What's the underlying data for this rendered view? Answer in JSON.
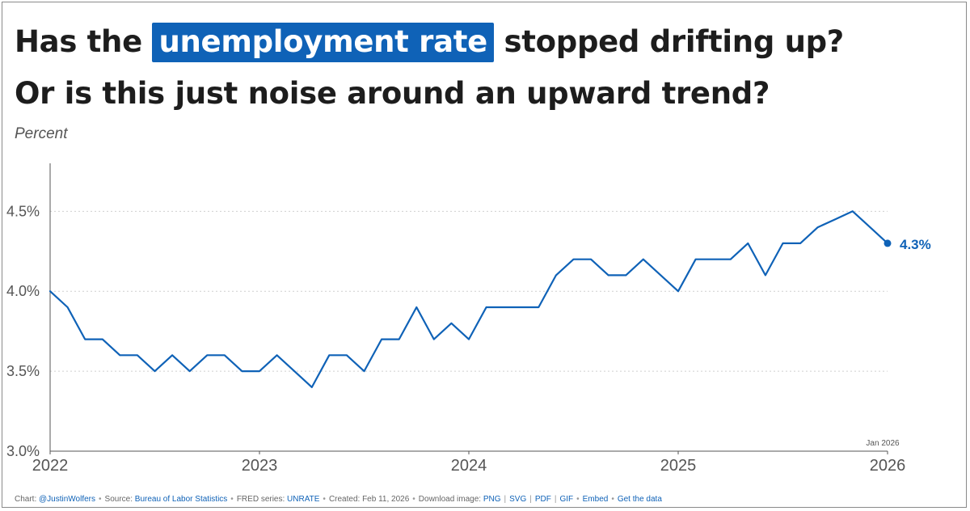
{
  "title": {
    "line1_before": "Has the ",
    "line1_highlight": "unemployment rate",
    "line1_after": " stopped drifting up?",
    "line2": "Or is this just noise around an upward trend?"
  },
  "subtitle": "Percent",
  "chart_data": {
    "type": "line",
    "title": "Has the unemployment rate stopped drifting up? Or is this just noise around an upward trend?",
    "ylabel": "Percent",
    "xlabel": "",
    "xlim": [
      "2022-01",
      "2026-01"
    ],
    "ylim": [
      3.0,
      4.8
    ],
    "y_ticks": [
      3.0,
      3.5,
      4.0,
      4.5
    ],
    "y_tick_labels": [
      "3.0%",
      "3.5%",
      "4.0%",
      "4.5%"
    ],
    "x_ticks": [
      "2022-01",
      "2023-01",
      "2024-01",
      "2025-01",
      "2026-01"
    ],
    "x_tick_labels": [
      "2022",
      "2023",
      "2024",
      "2025",
      "2026"
    ],
    "grid": "horizontal-dotted",
    "series_color": "#0f62b7",
    "end_label": "4.3%",
    "end_annotation": "Jan 2026",
    "series": [
      {
        "name": "UNRATE",
        "x": [
          "2022-01",
          "2022-02",
          "2022-03",
          "2022-04",
          "2022-05",
          "2022-06",
          "2022-07",
          "2022-08",
          "2022-09",
          "2022-10",
          "2022-11",
          "2022-12",
          "2023-01",
          "2023-02",
          "2023-03",
          "2023-04",
          "2023-05",
          "2023-06",
          "2023-07",
          "2023-08",
          "2023-09",
          "2023-10",
          "2023-11",
          "2023-12",
          "2024-01",
          "2024-02",
          "2024-03",
          "2024-04",
          "2024-05",
          "2024-06",
          "2024-07",
          "2024-08",
          "2024-09",
          "2024-10",
          "2024-11",
          "2024-12",
          "2025-01",
          "2025-02",
          "2025-03",
          "2025-04",
          "2025-05",
          "2025-06",
          "2025-07",
          "2025-08",
          "2025-09",
          "2025-10",
          "2025-11",
          "2025-12",
          "2026-01"
        ],
        "values": [
          4.0,
          3.9,
          3.7,
          3.7,
          3.6,
          3.6,
          3.5,
          3.6,
          3.5,
          3.6,
          3.6,
          3.5,
          3.5,
          3.6,
          3.5,
          3.4,
          3.6,
          3.6,
          3.5,
          3.7,
          3.7,
          3.9,
          3.7,
          3.8,
          3.7,
          3.9,
          3.9,
          3.9,
          3.9,
          4.1,
          4.2,
          4.2,
          4.1,
          4.1,
          4.2,
          4.1,
          4.0,
          4.2,
          4.2,
          4.2,
          4.3,
          4.1,
          4.3,
          4.3,
          4.4,
          4.45,
          4.5,
          4.4,
          4.3
        ]
      }
    ]
  },
  "footer": {
    "chart_prefix": "Chart: ",
    "chart_by": "@JustinWolfers",
    "source_prefix": "Source: ",
    "source": "Bureau of Labor Statistics",
    "series_prefix": "FRED series: ",
    "series_id": "UNRATE",
    "created": "Created: Feb 11, 2026",
    "download_prefix": "Download image: ",
    "png": "PNG",
    "svg": "SVG",
    "pdf": "PDF",
    "gif": "GIF",
    "embed": "Embed",
    "get_data": "Get the data"
  }
}
